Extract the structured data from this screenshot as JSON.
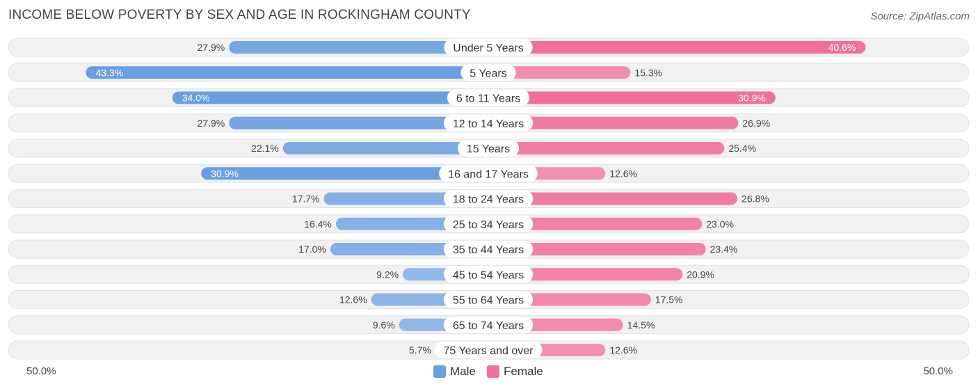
{
  "title": "INCOME BELOW POVERTY BY SEX AND AGE IN ROCKINGHAM COUNTY",
  "source": "Source: ZipAtlas.com",
  "axis": {
    "left_label": "50.0%",
    "right_label": "50.0%"
  },
  "legend": {
    "male_label": "Male",
    "female_label": "Female",
    "male_color": "#6a9fe0",
    "female_color": "#f07099"
  },
  "chart_data": {
    "type": "bar",
    "orientation": "horizontal-diverging",
    "title": "INCOME BELOW POVERTY BY SEX AND AGE IN ROCKINGHAM COUNTY",
    "xlim": [
      -50,
      50
    ],
    "categories": [
      "Under 5 Years",
      "5 Years",
      "6 to 11 Years",
      "12 to 14 Years",
      "15 Years",
      "16 and 17 Years",
      "18 to 24 Years",
      "25 to 34 Years",
      "35 to 44 Years",
      "45 to 54 Years",
      "55 to 64 Years",
      "65 to 74 Years",
      "75 Years and over"
    ],
    "series": [
      {
        "name": "Male",
        "color": "#6a9fe0",
        "values": [
          27.9,
          43.3,
          34.0,
          27.9,
          22.1,
          30.9,
          17.7,
          16.4,
          17.0,
          9.2,
          12.6,
          9.6,
          5.7
        ],
        "labels": [
          "27.9%",
          "43.3%",
          "34.0%",
          "27.9%",
          "22.1%",
          "30.9%",
          "17.7%",
          "16.4%",
          "17.0%",
          "9.2%",
          "12.6%",
          "9.6%",
          "5.7%"
        ]
      },
      {
        "name": "Female",
        "color": "#f07099",
        "values": [
          40.6,
          15.3,
          30.9,
          26.9,
          25.4,
          12.6,
          26.8,
          23.0,
          23.4,
          20.9,
          17.5,
          14.5,
          12.6
        ],
        "labels": [
          "40.6%",
          "15.3%",
          "30.9%",
          "26.9%",
          "25.4%",
          "12.6%",
          "26.8%",
          "23.0%",
          "23.4%",
          "20.9%",
          "17.5%",
          "14.5%",
          "12.6%"
        ]
      }
    ]
  }
}
